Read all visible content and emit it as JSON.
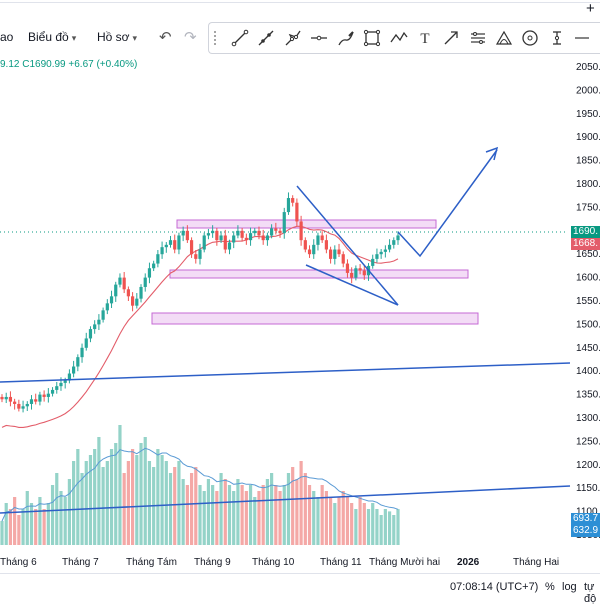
{
  "toolbar": {
    "menu_partial": "ao",
    "chart_label": "Biểu đồ",
    "template_label": "Hồ sơ",
    "tools": [
      "trend-line-icon",
      "ray-icon",
      "fib-icon",
      "horizontal-line-icon",
      "brush-icon",
      "rectangle-icon",
      "path-icon",
      "text-icon",
      "arrow-icon",
      "long-position-icon",
      "curve-icon",
      "ellipse-icon",
      "date-range-icon"
    ]
  },
  "legend": {
    "ohlc_text": "9.12  C1690.99  +6.67 (+0.40%)"
  },
  "price_axis": {
    "ticks": [
      "2050.00",
      "2000.00",
      "1950.00",
      "1900.00",
      "1850.00",
      "1800.00",
      "1750.00",
      "1700.00",
      "1650.00",
      "1600.00",
      "1550.00",
      "1500.00",
      "1450.00",
      "1400.00",
      "1350.00",
      "1300.00",
      "1250.00",
      "1200.00",
      "1150.00",
      "1100.00",
      "1050.00"
    ],
    "last_price": "1690.",
    "ma_price": "1668.",
    "volume_label": "693.7",
    "volume_ma_label": "632.9"
  },
  "time_axis": {
    "ticks": [
      "Tháng 6",
      "Tháng 7",
      "Tháng Tám",
      "Tháng 9",
      "Tháng 10",
      "Tháng 11",
      "Tháng Mười hai",
      "2026",
      "Tháng Hai"
    ]
  },
  "status_bar": {
    "time": "07:08:14 (UTC+7)",
    "percent": "%",
    "log": "log",
    "auto": "tự độ"
  },
  "colors": {
    "up": "#26a69a",
    "down": "#ef5350",
    "ma": "#e35d6a",
    "trendline": "#2d5fc7",
    "zone_fill": "#f3dcf6",
    "zone_border": "#c46ad4",
    "accent": "#089981"
  },
  "chart_data": {
    "type": "candlestick",
    "y_range": [
      1030,
      2070
    ],
    "y_scale": "price",
    "ma_period_note": "",
    "candles_close": [
      1340,
      1345,
      1335,
      1330,
      1320,
      1325,
      1330,
      1340,
      1335,
      1350,
      1345,
      1352,
      1360,
      1368,
      1375,
      1380,
      1395,
      1410,
      1430,
      1450,
      1470,
      1490,
      1500,
      1510,
      1530,
      1545,
      1560,
      1585,
      1600,
      1575,
      1560,
      1540,
      1555,
      1580,
      1600,
      1620,
      1630,
      1650,
      1665,
      1670,
      1680,
      1660,
      1690,
      1700,
      1680,
      1650,
      1640,
      1660,
      1690,
      1695,
      1700,
      1680,
      1690,
      1660,
      1675,
      1690,
      1700,
      1685,
      1680,
      1695,
      1700,
      1690,
      1680,
      1690,
      1705,
      1700,
      1695,
      1740,
      1770,
      1760,
      1720,
      1680,
      1660,
      1650,
      1670,
      1690,
      1680,
      1660,
      1640,
      1660,
      1650,
      1630,
      1610,
      1600,
      1620,
      1615,
      1605,
      1625,
      1640,
      1650,
      1655,
      1660,
      1670,
      1680,
      1690
    ],
    "volume": [
      0.2,
      0.35,
      0.3,
      0.4,
      0.25,
      0.3,
      0.45,
      0.35,
      0.3,
      0.4,
      0.3,
      0.35,
      0.5,
      0.6,
      0.45,
      0.4,
      0.55,
      0.7,
      0.8,
      0.6,
      0.7,
      0.75,
      0.8,
      0.9,
      0.65,
      0.7,
      0.8,
      0.85,
      1.0,
      0.6,
      0.7,
      0.8,
      0.75,
      0.85,
      0.9,
      0.7,
      0.65,
      0.8,
      0.75,
      0.7,
      0.6,
      0.65,
      0.7,
      0.55,
      0.5,
      0.6,
      0.65,
      0.5,
      0.45,
      0.55,
      0.5,
      0.45,
      0.6,
      0.55,
      0.5,
      0.45,
      0.55,
      0.5,
      0.45,
      0.5,
      0.4,
      0.45,
      0.5,
      0.55,
      0.6,
      0.5,
      0.45,
      0.5,
      0.6,
      0.65,
      0.55,
      0.7,
      0.6,
      0.5,
      0.45,
      0.4,
      0.5,
      0.45,
      0.4,
      0.35,
      0.4,
      0.45,
      0.4,
      0.35,
      0.3,
      0.4,
      0.35,
      0.3,
      0.35,
      0.3,
      0.25,
      0.3,
      0.28,
      0.25,
      0.3
    ]
  }
}
